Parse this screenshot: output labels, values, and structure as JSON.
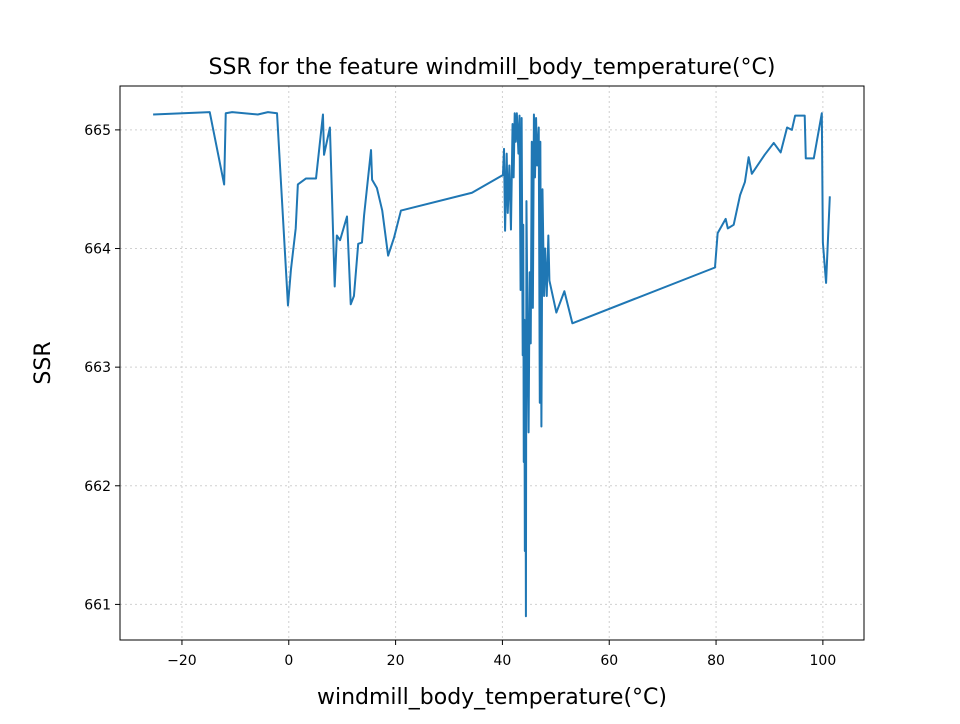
{
  "chart_data": {
    "type": "line",
    "title": "SSR for the feature windmill_body_temperature(°C)",
    "x_label": "windmill_body_temperature(°C)",
    "y_label": "SSR",
    "xlim": [
      -31.6,
      107.7
    ],
    "ylim": [
      660.7,
      665.37
    ],
    "xticks": [
      {
        "value": -20,
        "label": "−20"
      },
      0,
      20,
      40,
      60,
      80,
      100
    ],
    "yticks": [
      661,
      662,
      663,
      664,
      665
    ],
    "grid": true,
    "series": [
      {
        "name": "SSR",
        "color": "#1f77b4",
        "x": [
          -25.4,
          -14.8,
          -12.1,
          -11.8,
          -10.6,
          -5.8,
          -3.9,
          -2.2,
          -0.15,
          0.4,
          1.3,
          1.7,
          3.2,
          5.1,
          6.4,
          6.6,
          7.7,
          8.6,
          9.0,
          9.6,
          10.9,
          11.6,
          12.2,
          13.0,
          13.7,
          14.1,
          15.4,
          15.6,
          16.5,
          17.5,
          18.6,
          19.7,
          21.0,
          34.3,
          40.1,
          40.3,
          40.5,
          40.8,
          41.0,
          41.3,
          41.6,
          41.9,
          42.1,
          42.3,
          42.5,
          42.7,
          43.0,
          43.2,
          43.4,
          43.6,
          43.8,
          43.9,
          44.0,
          44.1,
          44.2,
          44.3,
          44.4,
          44.5,
          44.7,
          44.9,
          45.1,
          45.3,
          45.5,
          45.7,
          45.9,
          46.1,
          46.3,
          46.5,
          46.8,
          47.0,
          47.1,
          47.3,
          47.5,
          47.8,
          48.0,
          48.3,
          48.6,
          48.8,
          50.1,
          51.6,
          53.1,
          79.8,
          80.3,
          81.8,
          82.2,
          83.3,
          84.5,
          85.4,
          86.1,
          86.7,
          89.1,
          90.8,
          92.1,
          93.3,
          94.2,
          94.8,
          96.6,
          96.8,
          98.3,
          99.8,
          100.0,
          100.6,
          101.3
        ],
        "values": [
          665.13,
          665.15,
          664.54,
          665.14,
          665.15,
          665.13,
          665.15,
          665.14,
          663.52,
          663.82,
          664.17,
          664.54,
          664.59,
          664.59,
          665.13,
          664.79,
          665.02,
          663.68,
          664.11,
          664.07,
          664.27,
          663.53,
          663.6,
          664.04,
          664.05,
          664.28,
          664.83,
          664.58,
          664.51,
          664.32,
          663.94,
          664.09,
          664.32,
          664.47,
          664.62,
          664.84,
          664.15,
          664.8,
          664.3,
          664.7,
          664.16,
          665.05,
          664.6,
          665.14,
          664.9,
          665.14,
          664.8,
          665.12,
          663.65,
          665.1,
          663.1,
          664.2,
          662.2,
          663.4,
          661.45,
          663.0,
          660.9,
          664.4,
          663.3,
          662.45,
          663.8,
          663.2,
          664.9,
          663.5,
          665.13,
          664.6,
          665.1,
          664.7,
          665.02,
          662.7,
          664.9,
          662.5,
          664.5,
          663.6,
          664.0,
          663.6,
          664.11,
          663.73,
          663.46,
          663.64,
          663.37,
          663.84,
          664.13,
          664.25,
          664.17,
          664.2,
          664.45,
          664.56,
          664.77,
          664.63,
          664.79,
          664.89,
          664.81,
          665.02,
          665.0,
          665.12,
          665.12,
          664.76,
          664.76,
          665.14,
          664.05,
          663.71,
          664.44
        ]
      }
    ]
  }
}
